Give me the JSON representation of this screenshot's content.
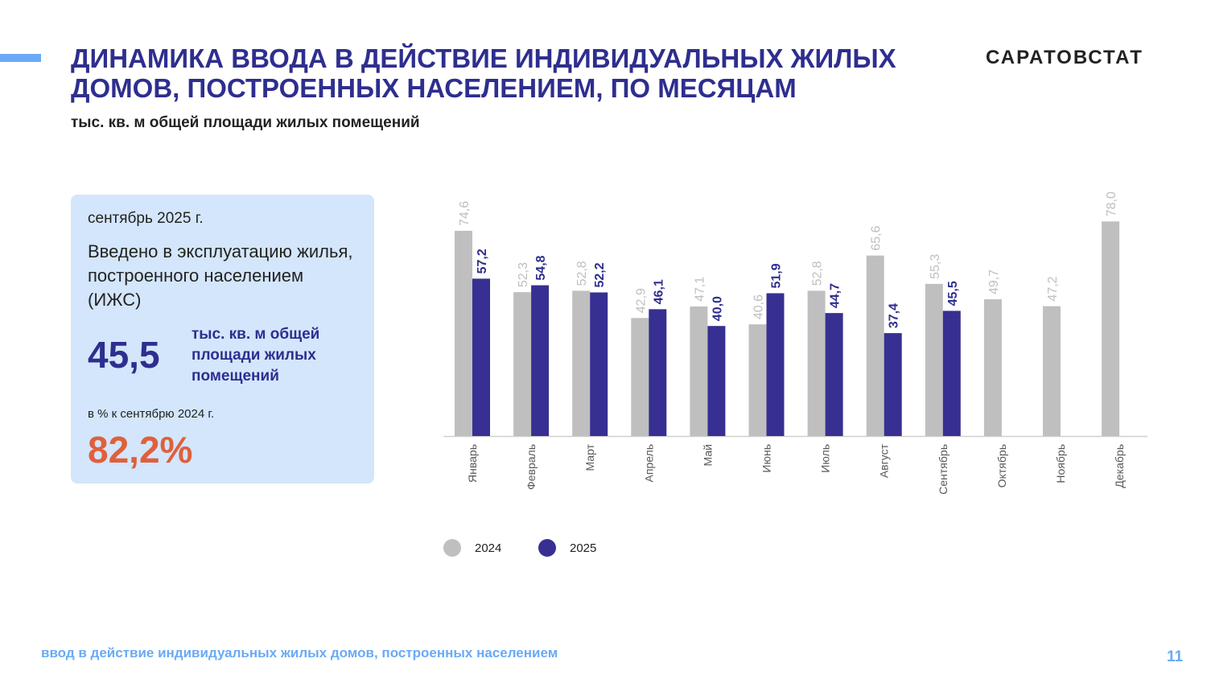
{
  "header": {
    "title": "ДИНАМИКА ВВОДА В ДЕЙСТВИЕ ИНДИВИДУАЛЬНЫХ ЖИЛЫХ ДОМОВ, ПОСТРОЕННЫХ НАСЕЛЕНИЕМ, ПО МЕСЯЦАМ",
    "subtitle": "тыс. кв. м общей площади жилых помещений",
    "brand": "САРАТОВСТАТ"
  },
  "card": {
    "period": "сентябрь 2025 г.",
    "description": "Введено в эксплуатацию жилья, построенного населением (ИЖС)",
    "value": "45,5",
    "unit": "тыс. кв. м общей площади жилых помещений",
    "comparison_label": "в % к  сентябрю 2024 г.",
    "percent": "82,2%"
  },
  "footer": {
    "text": "ввод в действие индивидуальных жилых домов, построенных населением",
    "page": "11"
  },
  "chart_data": {
    "type": "bar",
    "categories": [
      "Январь",
      "Февраль",
      "Март",
      "Апрель",
      "Май",
      "Июнь",
      "Июль",
      "Август",
      "Сентябрь",
      "Октябрь",
      "Ноябрь",
      "Декабрь"
    ],
    "series": [
      {
        "name": "2024",
        "color": "#bfbfbf",
        "values": [
          74.6,
          52.3,
          52.8,
          42.9,
          47.1,
          40.6,
          52.8,
          65.6,
          55.3,
          49.7,
          47.2,
          78.0
        ],
        "labels": [
          "74,6",
          "52,3",
          "52,8",
          "42,9",
          "47,1",
          "40,6",
          "52,8",
          "65,6",
          "55,3",
          "49,7",
          "47,2",
          "78,0"
        ]
      },
      {
        "name": "2025",
        "color": "#373092",
        "values": [
          57.2,
          54.8,
          52.2,
          46.1,
          40.0,
          51.9,
          44.7,
          37.4,
          45.5,
          null,
          null,
          null
        ],
        "labels": [
          "57,2",
          "54,8",
          "52,2",
          "46,1",
          "40,0",
          "51,9",
          "44,7",
          "37,4",
          "45,5",
          null,
          null,
          null
        ]
      }
    ],
    "ylim": [
      0,
      80
    ],
    "grid": false,
    "legend": "bottom"
  }
}
